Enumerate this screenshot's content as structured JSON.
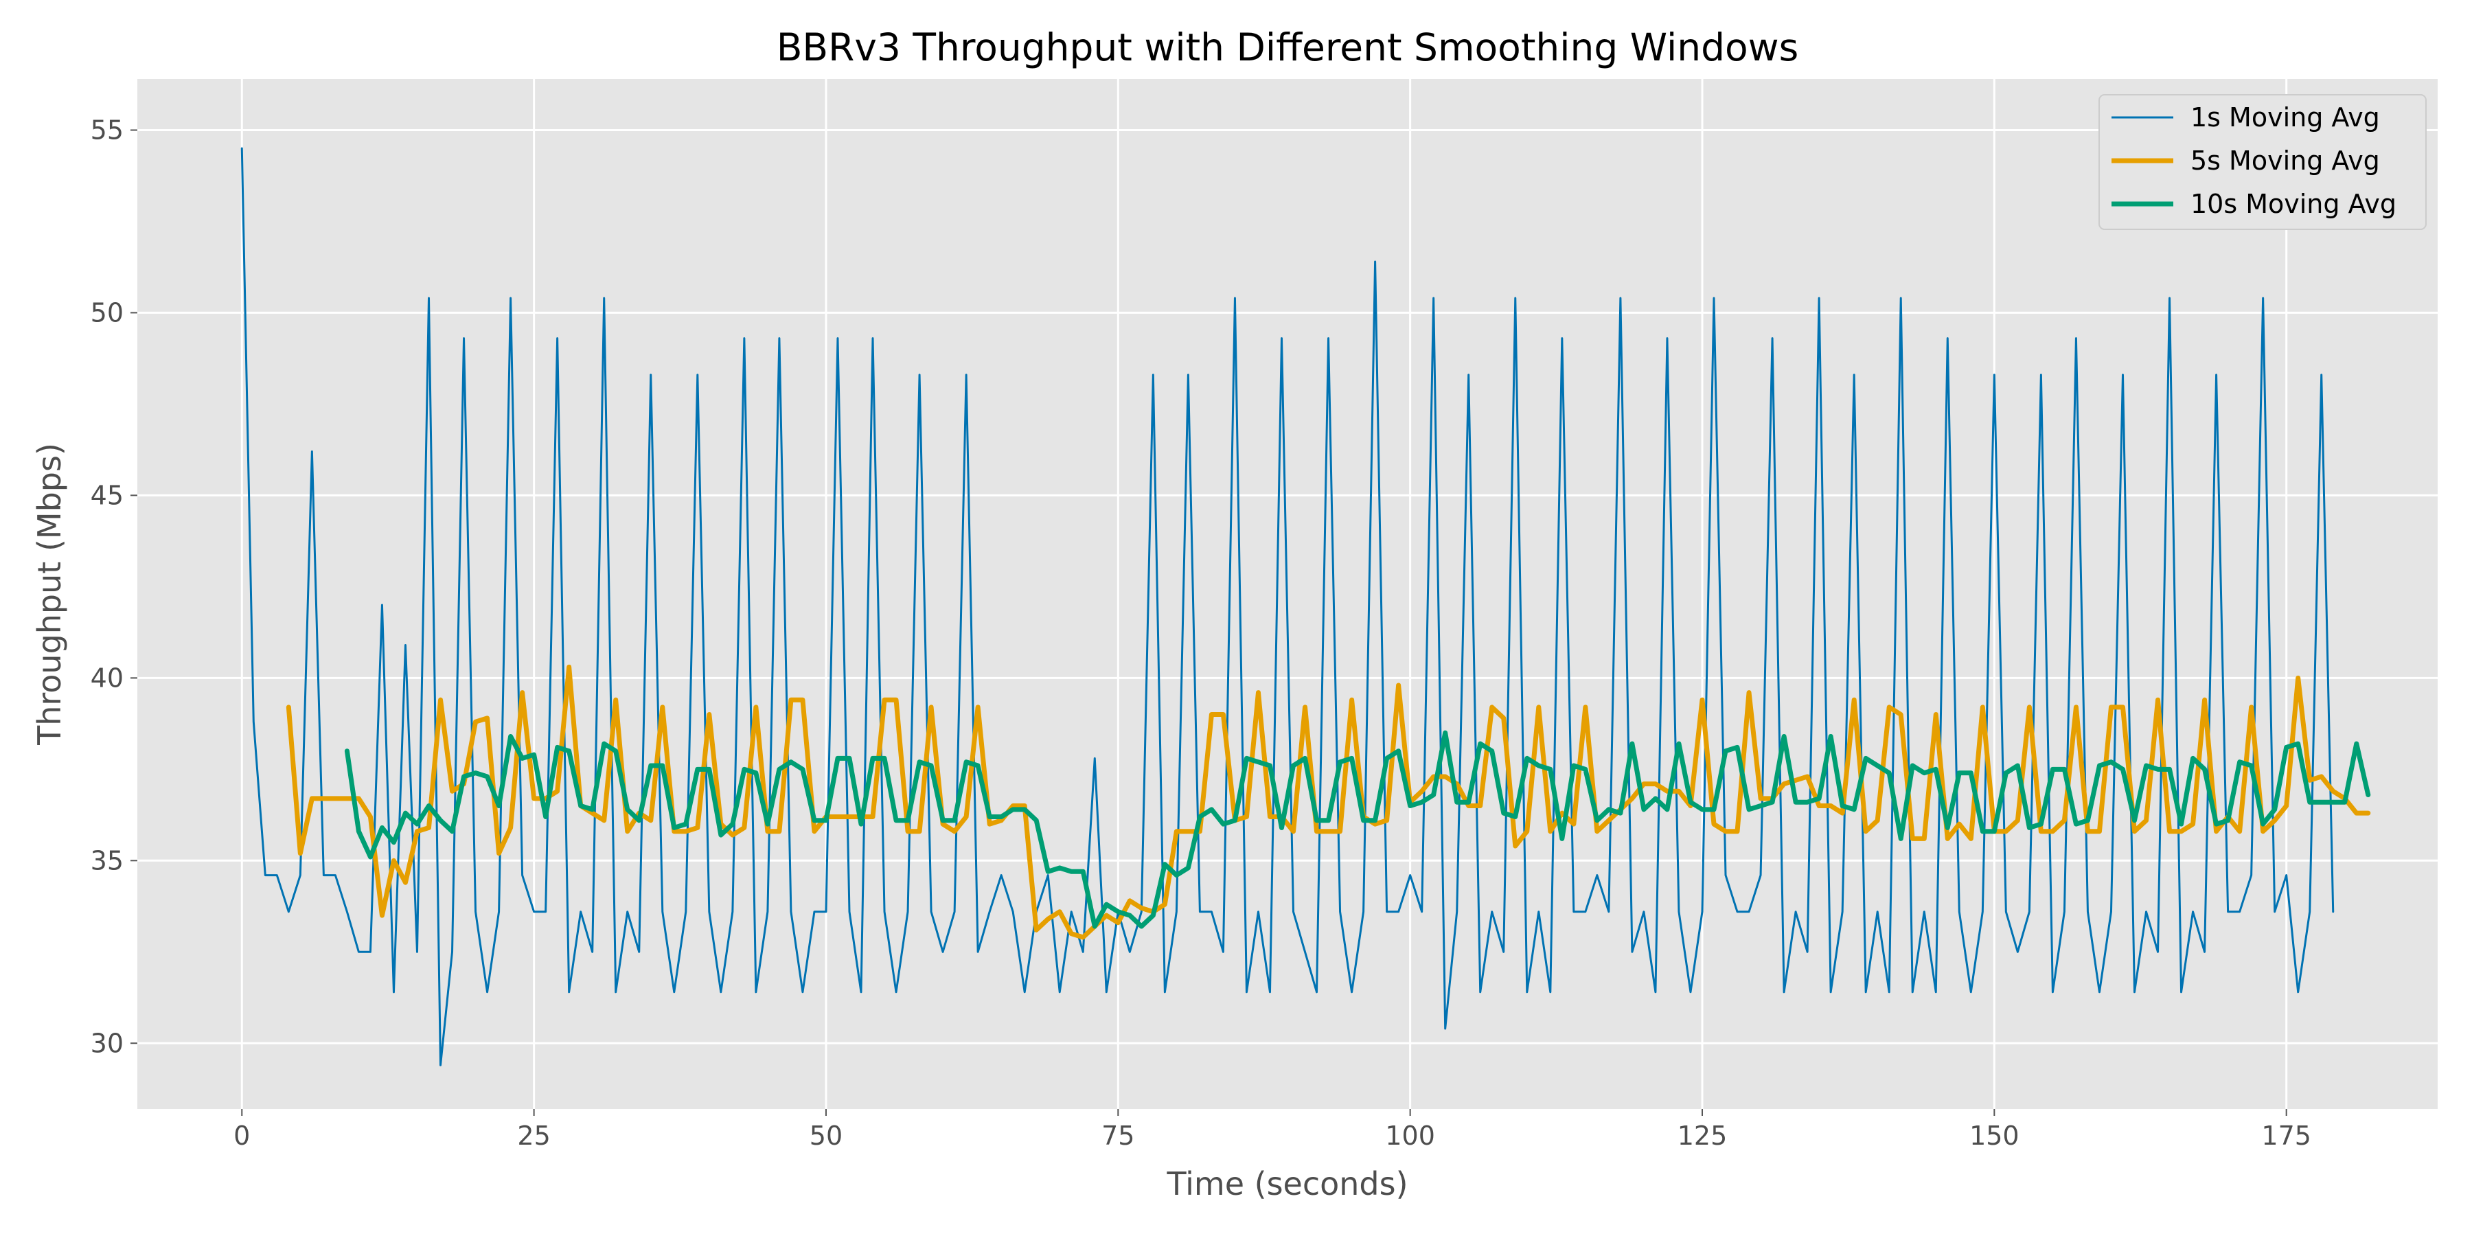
{
  "chart_data": {
    "type": "line",
    "title": "BBRv3 Throughput with Different Smoothing Windows",
    "xlabel": "Time (seconds)",
    "ylabel": "Throughput (Mbps)",
    "xlim": [
      -8.95,
      187.95
    ],
    "ylim": [
      28.2,
      56.4
    ],
    "xticks": [
      0,
      25,
      50,
      75,
      100,
      125,
      150,
      175
    ],
    "yticks": [
      30,
      35,
      40,
      45,
      50,
      55
    ],
    "grid": true,
    "legend_position": "top-right",
    "background": "#e5e5e5",
    "series": [
      {
        "name": "1s Moving Avg",
        "color": "#0072b2",
        "start_x": 0,
        "values": [
          54.5,
          38.8,
          34.6,
          34.6,
          33.6,
          34.6,
          46.2,
          34.6,
          34.6,
          33.6,
          32.5,
          32.5,
          42.0,
          31.4,
          40.9,
          32.5,
          50.4,
          29.4,
          32.5,
          49.3,
          33.6,
          31.4,
          33.6,
          50.4,
          34.6,
          33.6,
          33.6,
          49.3,
          31.4,
          33.6,
          32.5,
          50.4,
          31.4,
          33.6,
          32.5,
          48.3,
          33.6,
          31.4,
          33.6,
          48.3,
          33.6,
          31.4,
          33.6,
          49.3,
          31.4,
          33.6,
          49.3,
          33.6,
          31.4,
          33.6,
          33.6,
          49.3,
          33.6,
          31.4,
          49.3,
          33.6,
          31.4,
          33.6,
          48.3,
          33.6,
          32.5,
          33.6,
          48.3,
          32.5,
          33.6,
          34.6,
          33.6,
          31.4,
          33.6,
          34.6,
          31.4,
          33.6,
          32.5,
          37.8,
          31.4,
          33.6,
          32.5,
          33.6,
          48.3,
          31.4,
          33.6,
          48.3,
          33.6,
          33.6,
          32.5,
          50.4,
          31.4,
          33.6,
          31.4,
          49.3,
          33.6,
          32.5,
          31.4,
          49.3,
          33.6,
          31.4,
          33.6,
          51.4,
          33.6,
          33.6,
          34.6,
          33.6,
          50.4,
          30.4,
          33.6,
          48.3,
          31.4,
          33.6,
          32.5,
          50.4,
          31.4,
          33.6,
          31.4,
          49.3,
          33.6,
          33.6,
          34.6,
          33.6,
          50.4,
          32.5,
          33.6,
          31.4,
          49.3,
          33.6,
          31.4,
          33.6,
          50.4,
          34.6,
          33.6,
          33.6,
          34.6,
          49.3,
          31.4,
          33.6,
          32.5,
          50.4,
          31.4,
          33.6,
          48.3,
          31.4,
          33.6,
          31.4,
          50.4,
          31.4,
          33.6,
          31.4,
          49.3,
          33.6,
          31.4,
          33.6,
          48.3,
          33.6,
          32.5,
          33.6,
          48.3,
          31.4,
          33.6,
          49.3,
          33.6,
          31.4,
          33.6,
          48.3,
          31.4,
          33.6,
          32.5,
          50.4,
          31.4,
          33.6,
          32.5,
          48.3,
          33.6,
          33.6,
          34.6,
          50.4,
          33.6,
          34.6,
          31.4,
          33.6,
          48.3,
          33.6
        ]
      },
      {
        "name": "5s Moving Avg",
        "color": "#e69f00",
        "start_x": 4,
        "values": [
          39.2,
          35.2,
          36.7,
          36.7,
          36.7,
          36.7,
          36.7,
          36.2,
          33.5,
          35.0,
          34.4,
          35.8,
          35.9,
          39.4,
          36.9,
          37.1,
          38.8,
          38.9,
          35.2,
          35.9,
          39.6,
          36.7,
          36.7,
          36.9,
          40.3,
          36.5,
          36.3,
          36.1,
          39.4,
          35.8,
          36.3,
          36.1,
          39.2,
          35.8,
          35.8,
          35.9,
          39.0,
          36.0,
          35.7,
          35.9,
          39.2,
          35.8,
          35.8,
          39.4,
          39.4,
          35.8,
          36.2,
          36.2,
          36.2,
          36.2,
          36.2,
          39.4,
          39.4,
          35.8,
          35.8,
          39.2,
          36.0,
          35.8,
          36.2,
          39.2,
          36.0,
          36.1,
          36.5,
          36.5,
          33.1,
          33.4,
          33.6,
          33.0,
          32.9,
          33.2,
          33.5,
          33.3,
          33.9,
          33.7,
          33.6,
          33.8,
          35.8,
          35.8,
          35.8,
          39.0,
          39.0,
          36.1,
          36.2,
          39.6,
          36.2,
          36.2,
          35.8,
          39.2,
          35.8,
          35.8,
          35.8,
          39.4,
          36.2,
          36.0,
          36.1,
          39.8,
          36.6,
          36.9,
          37.3,
          37.3,
          37.1,
          36.5,
          36.5,
          39.2,
          38.9,
          35.4,
          35.8,
          39.2,
          35.8,
          36.3,
          36.0,
          39.2,
          35.8,
          36.1,
          36.4,
          36.7,
          37.1,
          37.1,
          36.9,
          36.9,
          36.5,
          39.4,
          36.0,
          35.8,
          35.8,
          39.6,
          36.7,
          36.7,
          37.1,
          37.2,
          37.3,
          36.5,
          36.5,
          36.3,
          39.4,
          35.8,
          36.1,
          39.2,
          39.0,
          35.6,
          35.6,
          39.0,
          35.6,
          36.0,
          35.6,
          39.2,
          35.8,
          35.8,
          36.1,
          39.2,
          35.8,
          35.8,
          36.1,
          39.2,
          35.8,
          35.8,
          39.2,
          39.2,
          35.8,
          36.1,
          39.4,
          35.8,
          35.8,
          36.0,
          39.4,
          35.8,
          36.2,
          35.8,
          39.2,
          35.8,
          36.1,
          36.5,
          40.0,
          37.2,
          37.3,
          36.9,
          36.7,
          36.3,
          36.3
        ]
      },
      {
        "name": "10s Moving Avg",
        "color": "#009e73",
        "start_x": 9,
        "values": [
          38.0,
          35.8,
          35.1,
          35.9,
          35.5,
          36.3,
          36.0,
          36.5,
          36.1,
          35.8,
          37.3,
          37.4,
          37.3,
          36.5,
          38.4,
          37.8,
          37.9,
          36.2,
          38.1,
          38.0,
          36.5,
          36.4,
          38.2,
          38.0,
          36.4,
          36.1,
          37.6,
          37.6,
          35.9,
          36.0,
          37.5,
          37.5,
          35.7,
          36.0,
          37.5,
          37.4,
          36.0,
          37.5,
          37.7,
          37.5,
          36.1,
          36.1,
          37.8,
          37.8,
          36.0,
          37.8,
          37.8,
          36.1,
          36.1,
          37.7,
          37.6,
          36.1,
          36.1,
          37.7,
          37.6,
          36.2,
          36.2,
          36.4,
          36.4,
          36.1,
          34.7,
          34.8,
          34.7,
          34.7,
          33.2,
          33.8,
          33.6,
          33.5,
          33.2,
          33.5,
          34.9,
          34.6,
          34.8,
          36.2,
          36.4,
          36.0,
          36.1,
          37.8,
          37.7,
          37.6,
          35.9,
          37.6,
          37.8,
          36.1,
          36.1,
          37.7,
          37.8,
          36.1,
          36.1,
          37.8,
          38.0,
          36.5,
          36.6,
          36.8,
          38.5,
          36.6,
          36.6,
          38.2,
          38.0,
          36.3,
          36.2,
          37.8,
          37.6,
          37.5,
          35.6,
          37.6,
          37.5,
          36.1,
          36.4,
          36.3,
          38.2,
          36.4,
          36.7,
          36.4,
          38.2,
          36.6,
          36.4,
          36.4,
          38.0,
          38.1,
          36.4,
          36.5,
          36.6,
          38.4,
          36.6,
          36.6,
          36.7,
          38.4,
          36.5,
          36.4,
          37.8,
          37.6,
          37.4,
          35.6,
          37.6,
          37.4,
          37.5,
          35.9,
          37.4,
          37.4,
          35.8,
          35.8,
          37.4,
          37.6,
          35.9,
          36.0,
          37.5,
          37.5,
          36.0,
          36.1,
          37.6,
          37.7,
          37.5,
          36.1,
          37.6,
          37.5,
          37.5,
          36.0,
          37.8,
          37.5,
          36.0,
          36.1,
          37.7,
          37.6,
          36.0,
          36.4,
          38.1,
          38.2,
          36.6,
          36.6,
          36.6,
          36.6,
          38.2,
          36.8
        ]
      }
    ]
  }
}
